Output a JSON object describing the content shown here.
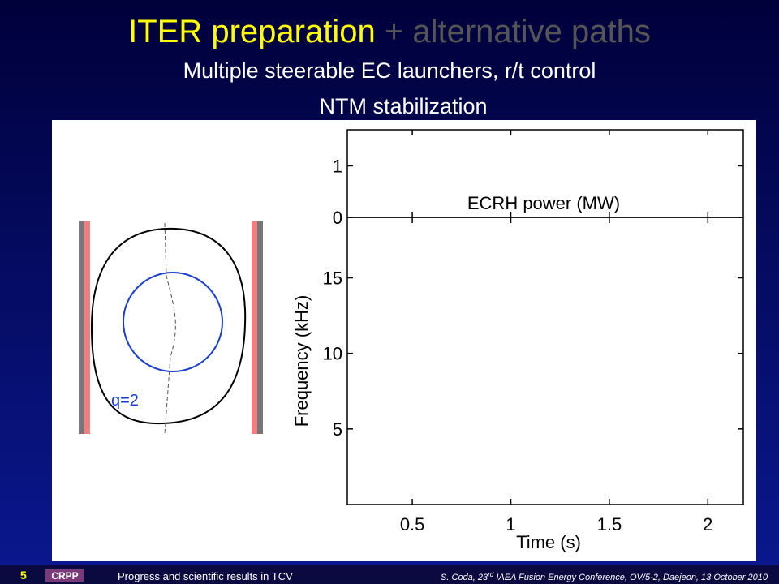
{
  "header": {
    "title_main": "ITER preparation",
    "title_alt": "+ alternative paths",
    "subtitle_1": "Multiple steerable EC launchers, r/t control",
    "subtitle_2": "NTM stabilization"
  },
  "chart_data": [
    {
      "type": "line",
      "annotation": "ECRH power (MW)",
      "xlim": [
        0.17,
        2.18
      ],
      "xticks": [
        0.5,
        1,
        1.5,
        2
      ],
      "ylim": [
        0,
        1.7
      ],
      "yticks": [
        0,
        1
      ],
      "series": []
    },
    {
      "type": "line",
      "x_label": "Time (s)",
      "y_label": "Frequency (kHz)",
      "xlim": [
        0.17,
        2.18
      ],
      "xticks": [
        0.5,
        1,
        1.5,
        2
      ],
      "ylim": [
        0,
        19
      ],
      "yticks": [
        5,
        10,
        15
      ],
      "series": []
    }
  ],
  "diagram": {
    "label": "q=2"
  },
  "footer": {
    "page": "5",
    "logo": "CRPP",
    "left": "Progress and scientific results in TCV",
    "right_1": "S. Coda, 23",
    "right_sup": "rd",
    "right_2": " IAEA Fusion Energy Conference, OV/5-2, Daejeon, 13 October 2010"
  }
}
